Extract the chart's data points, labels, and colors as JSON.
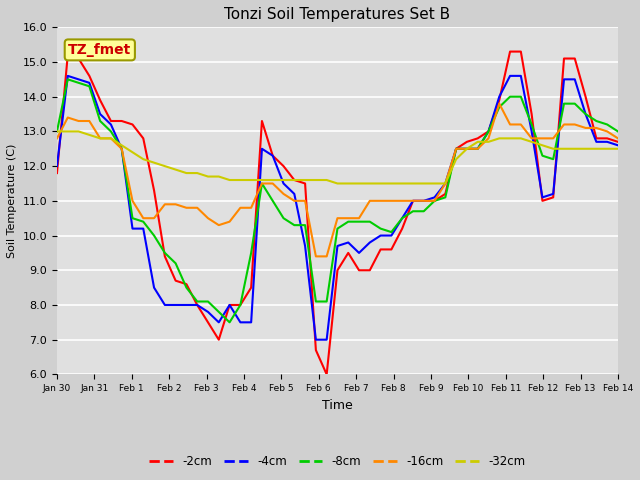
{
  "title": "Tonzi Soil Temperatures Set B",
  "xlabel": "Time",
  "ylabel": "Soil Temperature (C)",
  "ylim": [
    6.0,
    16.0
  ],
  "yticks": [
    6.0,
    7.0,
    8.0,
    9.0,
    10.0,
    11.0,
    12.0,
    13.0,
    14.0,
    15.0,
    16.0
  ],
  "xtick_labels": [
    "Jan 30",
    "Jan 31",
    "Feb 1",
    "Feb 2",
    "Feb 3",
    "Feb 4",
    "Feb 5",
    "Feb 6",
    "Feb 7",
    "Feb 8",
    "Feb 9",
    "Feb 10",
    "Feb 11",
    "Feb 12",
    "Feb 13",
    "Feb 14"
  ],
  "fig_facecolor": "#d0d0d0",
  "ax_facecolor": "#e0e0e0",
  "annotation_label": "TZ_fmet",
  "annotation_color": "#cc0000",
  "annotation_bg": "#ffff99",
  "annotation_edge": "#999900",
  "series": {
    "-2cm": {
      "color": "#ff0000",
      "lw": 1.5
    },
    "-4cm": {
      "color": "#0000ff",
      "lw": 1.5
    },
    "-8cm": {
      "color": "#00cc00",
      "lw": 1.5
    },
    "-16cm": {
      "color": "#ff8800",
      "lw": 1.5
    },
    "-32cm": {
      "color": "#cccc00",
      "lw": 1.5
    }
  },
  "y_2cm": [
    11.8,
    15.2,
    15.1,
    14.6,
    13.9,
    13.3,
    13.3,
    13.2,
    12.8,
    11.3,
    9.4,
    8.7,
    8.6,
    8.0,
    7.5,
    7.0,
    8.0,
    8.0,
    8.5,
    13.3,
    12.3,
    12.0,
    11.6,
    11.5,
    6.7,
    6.0,
    9.0,
    9.5,
    9.0,
    9.0,
    9.6,
    9.6,
    10.2,
    11.0,
    11.0,
    11.0,
    11.2,
    12.5,
    12.7,
    12.8,
    13.0,
    13.9,
    15.3,
    15.3,
    13.5,
    11.0,
    11.1,
    15.1,
    15.1,
    14.0,
    12.8,
    12.8,
    12.7
  ],
  "y_4cm": [
    12.0,
    14.6,
    14.5,
    14.4,
    13.5,
    13.2,
    12.5,
    10.2,
    10.2,
    8.5,
    8.0,
    8.0,
    8.0,
    8.0,
    7.8,
    7.5,
    8.0,
    7.5,
    7.5,
    12.5,
    12.3,
    11.5,
    11.2,
    9.7,
    7.0,
    7.0,
    9.7,
    9.8,
    9.5,
    9.8,
    10.0,
    10.0,
    10.5,
    11.0,
    11.0,
    11.1,
    11.5,
    12.5,
    12.5,
    12.5,
    13.0,
    14.0,
    14.6,
    14.6,
    13.0,
    11.1,
    11.2,
    14.5,
    14.5,
    13.5,
    12.7,
    12.7,
    12.6
  ],
  "y_8cm": [
    13.0,
    14.5,
    14.4,
    14.3,
    13.3,
    13.0,
    12.5,
    10.5,
    10.4,
    10.0,
    9.5,
    9.2,
    8.5,
    8.1,
    8.1,
    7.8,
    7.5,
    8.0,
    9.5,
    11.5,
    11.0,
    10.5,
    10.3,
    10.3,
    8.1,
    8.1,
    10.2,
    10.4,
    10.4,
    10.4,
    10.2,
    10.1,
    10.5,
    10.7,
    10.7,
    11.0,
    11.1,
    12.5,
    12.5,
    12.5,
    13.0,
    13.7,
    14.0,
    14.0,
    13.2,
    12.3,
    12.2,
    13.8,
    13.8,
    13.5,
    13.3,
    13.2,
    13.0
  ],
  "y_16cm": [
    12.8,
    13.4,
    13.3,
    13.3,
    12.8,
    12.8,
    12.5,
    11.0,
    10.5,
    10.5,
    10.9,
    10.9,
    10.8,
    10.8,
    10.5,
    10.3,
    10.4,
    10.8,
    10.8,
    11.5,
    11.5,
    11.2,
    11.0,
    11.0,
    9.4,
    9.4,
    10.5,
    10.5,
    10.5,
    11.0,
    11.0,
    11.0,
    11.0,
    11.0,
    11.0,
    11.0,
    11.5,
    12.5,
    12.5,
    12.5,
    12.8,
    13.8,
    13.2,
    13.2,
    12.8,
    12.8,
    12.8,
    13.2,
    13.2,
    13.1,
    13.1,
    13.0,
    12.8
  ],
  "y_32cm": [
    13.0,
    13.0,
    13.0,
    12.9,
    12.8,
    12.8,
    12.6,
    12.4,
    12.2,
    12.1,
    12.0,
    11.9,
    11.8,
    11.8,
    11.7,
    11.7,
    11.6,
    11.6,
    11.6,
    11.6,
    11.6,
    11.6,
    11.6,
    11.6,
    11.6,
    11.6,
    11.5,
    11.5,
    11.5,
    11.5,
    11.5,
    11.5,
    11.5,
    11.5,
    11.5,
    11.5,
    11.5,
    12.2,
    12.5,
    12.7,
    12.7,
    12.8,
    12.8,
    12.8,
    12.7,
    12.6,
    12.5,
    12.5,
    12.5,
    12.5,
    12.5,
    12.5,
    12.5
  ]
}
